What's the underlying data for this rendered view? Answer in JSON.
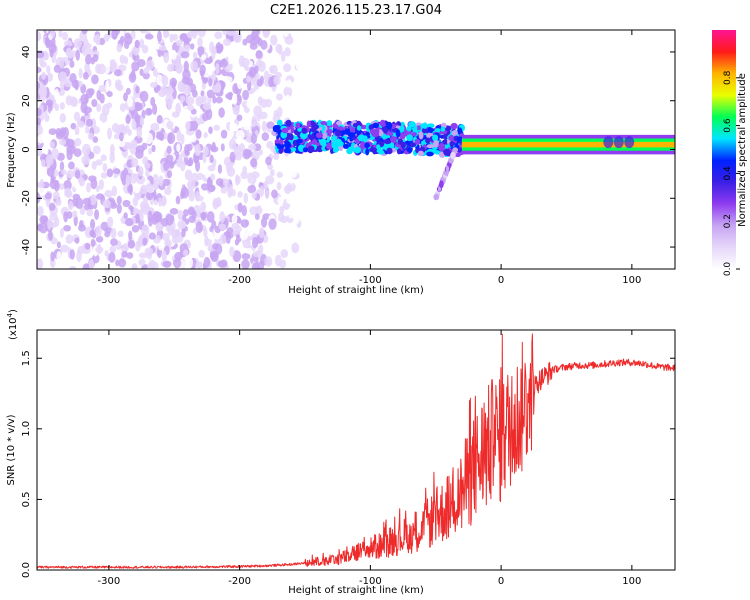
{
  "figure_title": "C2E1.2026.115.23.17.G04",
  "colors": {
    "snr_line": "#ee2a2a",
    "background": "#ffffff",
    "colormap": [
      "#ffffff",
      "#e6d6fa",
      "#c7a5f2",
      "#8f3df0",
      "#3b1fe6",
      "#0022ff",
      "#00e6ff",
      "#00ff55",
      "#eaff00",
      "#ffb400",
      "#ff1a1a",
      "#ff1493"
    ]
  },
  "chart_data": [
    {
      "type": "heatmap",
      "title": "C2E1.2026.115.23.17.G04",
      "xlabel": "Height of straight line (km)",
      "ylabel": "Frequency (Hz)",
      "xlim": [
        -355,
        133
      ],
      "ylim": [
        -49,
        49
      ],
      "xticks": [
        -300,
        -200,
        -100,
        0,
        100
      ],
      "xtick_labels": [
        "-300",
        "-200",
        "-100",
        "0",
        "100"
      ],
      "yticks": [
        -40,
        -20,
        0,
        20,
        40
      ],
      "ytick_labels": [
        "-40",
        "-20",
        "0",
        "20",
        "40"
      ],
      "colorbar": {
        "label": "Normalized spectral amplitude",
        "range": [
          0,
          1
        ],
        "ticks": [
          0.0,
          0.2,
          0.4,
          0.6,
          0.8
        ],
        "tick_labels": [
          "0.0",
          "0.2",
          "0.4",
          "0.6",
          "0.8"
        ]
      },
      "regions": [
        {
          "name": "noise",
          "x_range": [
            -355,
            -150
          ],
          "freq_range": [
            -49,
            49
          ],
          "amplitude": 0.12
        },
        {
          "name": "signal_onset",
          "x_range": [
            -172,
            -30
          ],
          "freq_center": 5,
          "freq_halfwidth": 6,
          "amplitude": 0.45
        },
        {
          "name": "diffraction_tail",
          "x_range": [
            -50,
            -35
          ],
          "freq_range": [
            -22,
            0
          ],
          "amplitude": 0.12
        },
        {
          "name": "strong_signal",
          "x_range": [
            -30,
            133
          ],
          "freq_center": 2,
          "freq_halfwidth": 2.5,
          "amplitude": 0.85
        }
      ]
    },
    {
      "type": "line",
      "xlabel": "Height of straight line (km)",
      "ylabel": "SNR (10 * v/v)",
      "scale_label": "(x10",
      "scale_exponent": "4",
      "xlim": [
        -355,
        133
      ],
      "ylim": [
        0,
        1.7
      ],
      "xticks": [
        -300,
        -200,
        -100,
        0,
        100
      ],
      "xtick_labels": [
        "-300",
        "-200",
        "-100",
        "0",
        "100"
      ],
      "yticks": [
        0.0,
        0.5,
        1.0,
        1.5
      ],
      "ytick_labels": [
        "0.0",
        "0.5",
        "1.0",
        "1.5"
      ],
      "series": [
        {
          "name": "SNR",
          "x": [
            -355,
            -300,
            -250,
            -200,
            -180,
            -160,
            -150,
            -140,
            -130,
            -120,
            -110,
            -100,
            -90,
            -80,
            -70,
            -60,
            -50,
            -40,
            -30,
            -25,
            -20,
            -15,
            -10,
            -5,
            0,
            5,
            10,
            15,
            20,
            25,
            30,
            40,
            50,
            60,
            70,
            80,
            90,
            100,
            110,
            120,
            133
          ],
          "values": [
            0.02,
            0.02,
            0.02,
            0.025,
            0.03,
            0.04,
            0.05,
            0.06,
            0.07,
            0.09,
            0.12,
            0.15,
            0.18,
            0.22,
            0.25,
            0.3,
            0.37,
            0.45,
            0.55,
            0.65,
            0.72,
            0.8,
            0.86,
            0.95,
            0.9,
            1.0,
            1.05,
            1.1,
            1.2,
            1.3,
            1.35,
            1.42,
            1.44,
            1.45,
            1.45,
            1.46,
            1.47,
            1.47,
            1.46,
            1.44,
            1.43
          ]
        }
      ]
    }
  ]
}
